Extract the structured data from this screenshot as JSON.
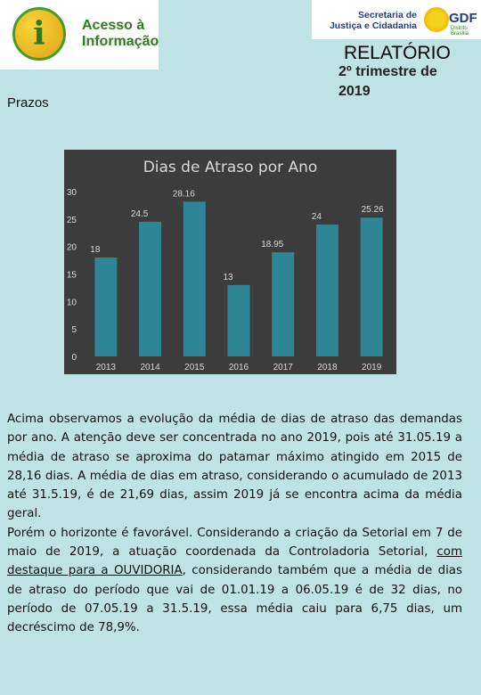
{
  "header": {
    "logo_left": {
      "icon_letter": "i",
      "line1": "Acesso à",
      "line2": "Informação"
    },
    "logo_right": {
      "line1": "Secretaria de",
      "line2": "Justiça e Cidadania",
      "brand": "GDF",
      "tagline": "Distrito Brasília"
    },
    "report_title": "RELATÓRIO",
    "report_subtitle": "2º trimestre de 2019"
  },
  "section_label": "Prazos",
  "colors": {
    "background": "#bfe3e4",
    "chart_background": "#3c3c3c",
    "bar": "#2e8596",
    "text_light": "#d9d9d9"
  },
  "chart_data": {
    "type": "bar",
    "title": "Dias de Atraso por Ano",
    "categories": [
      "2013",
      "2014",
      "2015",
      "2016",
      "2017",
      "2018",
      "2019"
    ],
    "values": [
      18,
      24.5,
      28.16,
      13,
      18.95,
      24,
      25.26
    ],
    "labels": [
      "18",
      "24.5",
      "28.16",
      "13",
      "18.95",
      "24",
      "25.26"
    ],
    "yticks": [
      0,
      5,
      10,
      15,
      20,
      25,
      30
    ],
    "ylim": [
      0,
      30
    ],
    "xlabel": "",
    "ylabel": "",
    "grid": false,
    "legend": "none"
  },
  "body": {
    "p1": "Acima observamos a evolução da média de dias de atraso das demandas por ano. A atenção deve ser concentrada no ano 2019, pois até 31.05.19 a média de atraso se aproxima do patamar máximo atingido em 2015 de 28,16 dias. A média de dias em atraso, considerando o acumulado de 2013 até 31.5.19, é de 21,69 dias, assim 2019 já se encontra acima da média geral.",
    "p2_a": "Porém o horizonte é favorável. Considerando a criação da Setorial em 7 de maio de 2019, a atuação coordenada da Controladoria Setorial, ",
    "p2_u": "com destaque para a OUVIDORIA",
    "p2_b": ", considerando também que a média de dias de atraso do período que vai de 01.01.19 a 06.05.19 é de 32 dias, no período de 07.05.19 a 31.5.19, essa média caiu para 6,75 dias, um decréscimo de 78,9%."
  }
}
